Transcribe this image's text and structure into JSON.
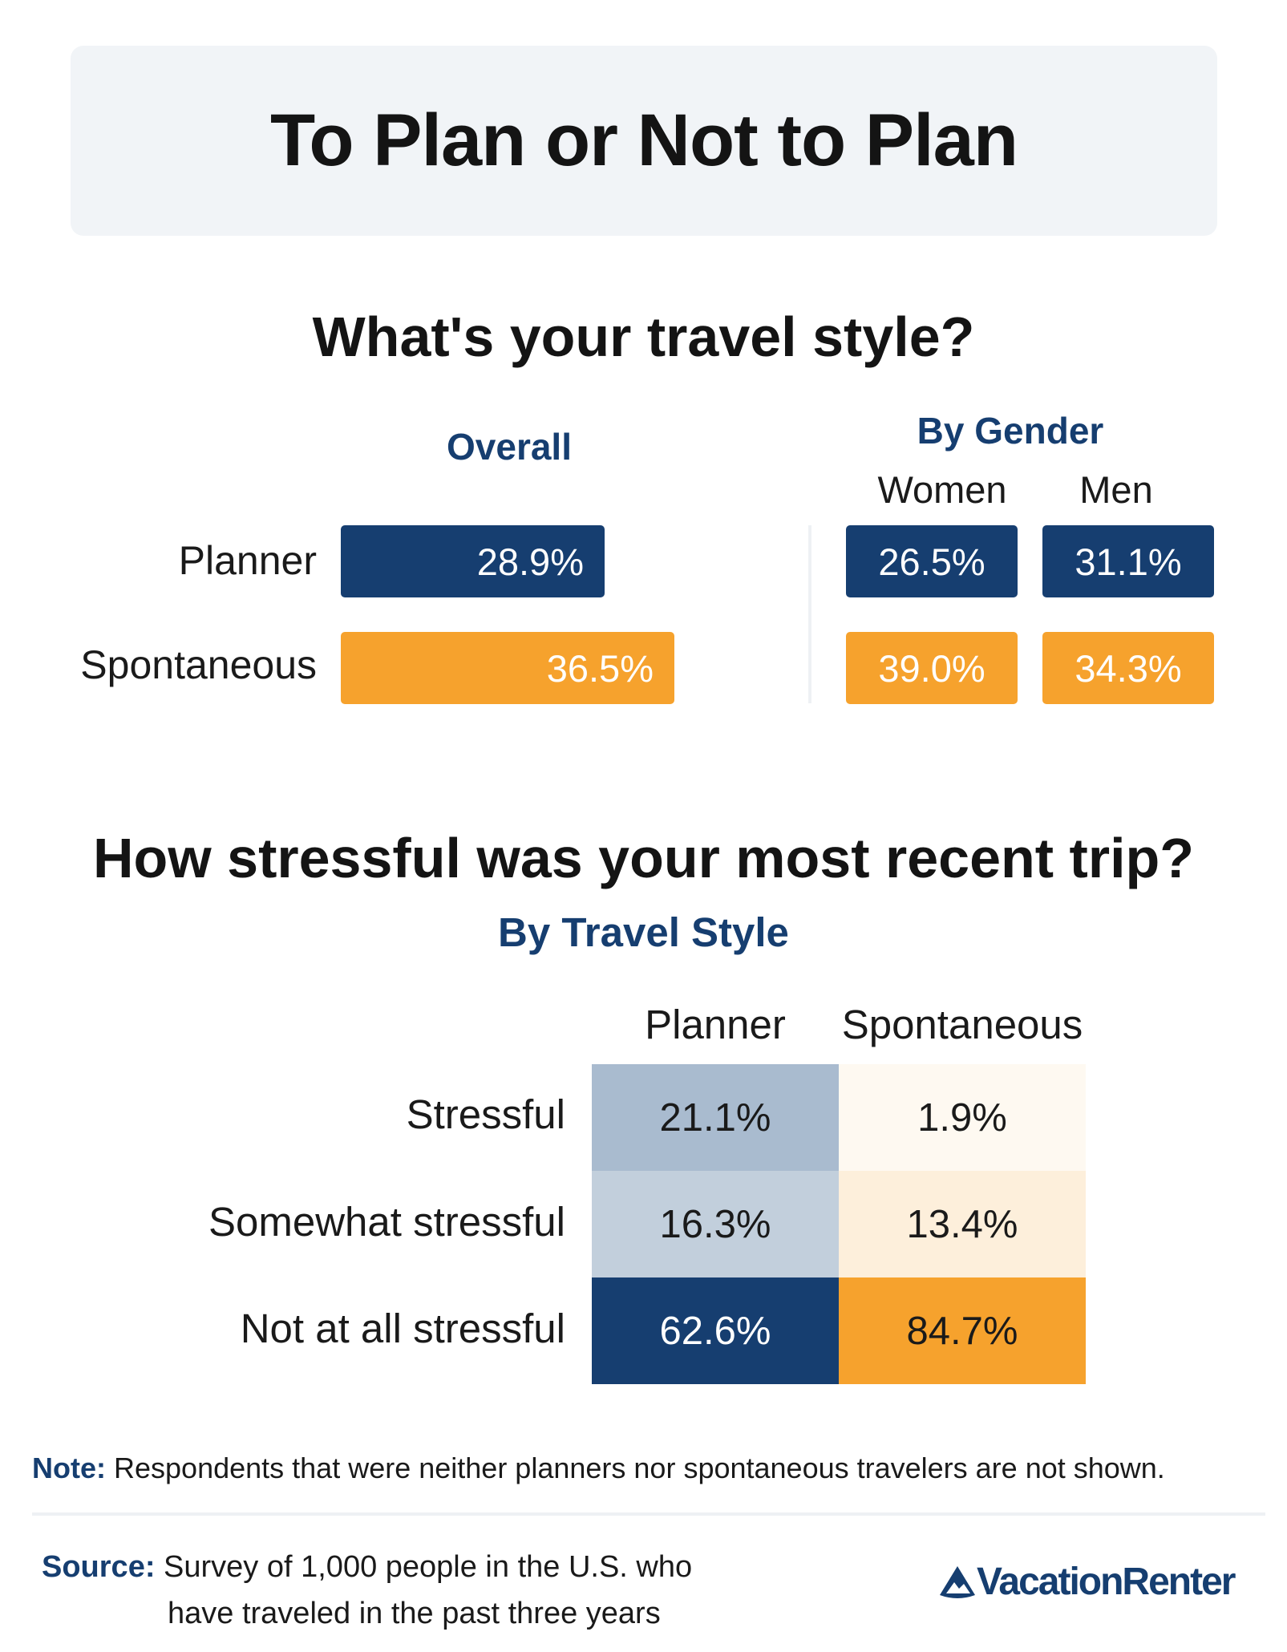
{
  "title": "To Plan or Not to Plan",
  "section1": {
    "question": "What's your travel style?",
    "overall_label": "Overall",
    "gender_label": "By Gender",
    "women_label": "Women",
    "men_label": "Men",
    "rows": [
      "Planner",
      "Spontaneous"
    ]
  },
  "section2": {
    "question": "How stressful was your most recent trip?",
    "subtitle": "By Travel Style",
    "columns": [
      "Planner",
      "Spontaneous"
    ],
    "rows": [
      "Stressful",
      "Somewhat stressful",
      "Not at all stressful"
    ]
  },
  "chart_data": [
    {
      "type": "bar",
      "title": "What's your travel style?",
      "subtitle": "Overall",
      "categories": [
        "Planner",
        "Spontaneous"
      ],
      "values": [
        28.9,
        36.5
      ],
      "labels": [
        "28.9%",
        "36.5%"
      ],
      "colors": [
        "#163e70",
        "#f6a22d"
      ]
    },
    {
      "type": "table",
      "title": "By Gender",
      "columns": [
        "Women",
        "Men"
      ],
      "rows": [
        "Planner",
        "Spontaneous"
      ],
      "values": [
        [
          26.5,
          31.1
        ],
        [
          39.0,
          34.3
        ]
      ],
      "labels": [
        [
          "26.5%",
          "31.1%"
        ],
        [
          "39.0%",
          "34.3%"
        ]
      ]
    },
    {
      "type": "heatmap",
      "title": "How stressful was your most recent trip?",
      "subtitle": "By Travel Style",
      "columns": [
        "Planner",
        "Spontaneous"
      ],
      "rows": [
        "Stressful",
        "Somewhat stressful",
        "Not at all stressful"
      ],
      "values": [
        [
          21.1,
          1.9
        ],
        [
          16.3,
          13.4
        ],
        [
          62.6,
          84.7
        ]
      ],
      "labels": [
        [
          "21.1%",
          "1.9%"
        ],
        [
          "16.3%",
          "13.4%"
        ],
        [
          "62.6%",
          "84.7%"
        ]
      ],
      "colors": {
        "planner": [
          "#a9bbcf",
          "#c2cfdc",
          "#163e70"
        ],
        "spontaneous": [
          "#fef9f1",
          "#fdefdb",
          "#f6a22d"
        ]
      }
    }
  ],
  "footer": {
    "note_label": "Note:",
    "note_text": " Respondents that were neither planners nor spontaneous travelers are not shown.",
    "source_label": "Source:",
    "source_line1": " Survey of 1,000 people in the U.S. who",
    "source_line2": "have traveled in the past three years",
    "logo_text": "VacationRenter",
    "logo_icon": "mountain-house-icon"
  }
}
